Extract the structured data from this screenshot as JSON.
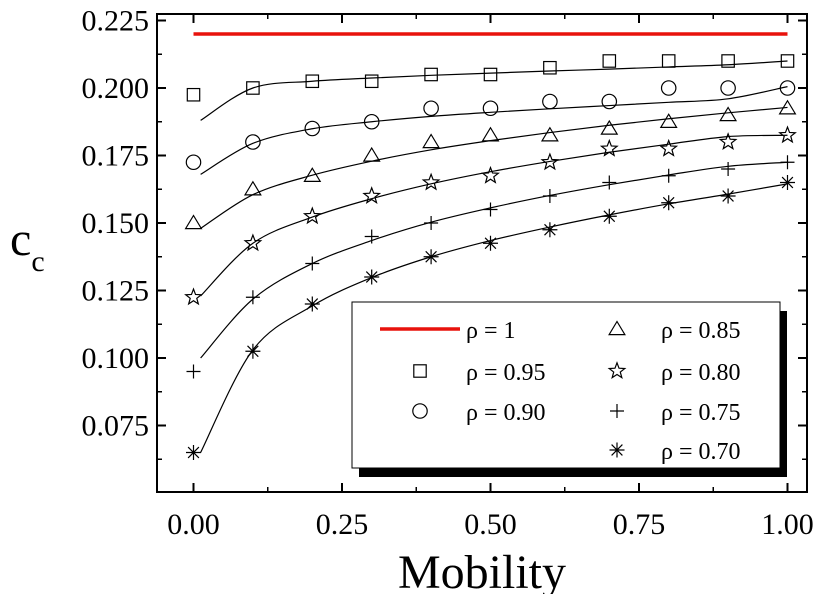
{
  "chart_data": {
    "type": "scatter",
    "title": "",
    "xlabel": "Mobility",
    "ylabel": "c",
    "ylabel_subscript": "c",
    "xlim": [
      -0.06,
      1.06
    ],
    "ylim": [
      0.05,
      0.228
    ],
    "xticks": [
      "0.00",
      "0.25",
      "0.50",
      "0.75",
      "1.00"
    ],
    "xtick_values": [
      0,
      0.25,
      0.5,
      0.75,
      1.0
    ],
    "yticks": [
      "0.075",
      "0.100",
      "0.125",
      "0.150",
      "0.175",
      "0.200",
      "0.225"
    ],
    "ytick_values": [
      0.075,
      0.1,
      0.125,
      0.15,
      0.175,
      0.2,
      0.225
    ],
    "legend_placement": "bottom-right",
    "x": [
      0,
      0.1,
      0.2,
      0.3,
      0.4,
      0.5,
      0.6,
      0.7,
      0.8,
      0.9,
      1.0
    ],
    "series": [
      {
        "name": "ρ = 1",
        "marker": "line",
        "color": "#e8120c",
        "values": [
          0.22,
          0.22
        ]
      },
      {
        "name": "ρ = 0.95",
        "marker": "square",
        "values": [
          0.1975,
          0.2,
          0.2025,
          0.2025,
          0.205,
          0.205,
          0.2075,
          0.21,
          0.21,
          0.21,
          0.21
        ],
        "fit": [
          0.188,
          0.2,
          0.2025,
          0.2037,
          0.2047,
          0.2055,
          0.2063,
          0.207,
          0.2078,
          0.2086,
          0.21
        ]
      },
      {
        "name": "ρ = 0.85",
        "marker": "triangle",
        "values": [
          0.15,
          0.1625,
          0.1675,
          0.175,
          0.18,
          0.1825,
          0.1825,
          0.185,
          0.1875,
          0.19,
          0.1925
        ],
        "fit": [
          0.148,
          0.1605,
          0.1677,
          0.1729,
          0.1771,
          0.1805,
          0.1835,
          0.1862,
          0.1886,
          0.1908,
          0.1928
        ]
      },
      {
        "name": "ρ = 0.90",
        "marker": "circle",
        "values": [
          0.1725,
          0.18,
          0.185,
          0.1875,
          0.1925,
          0.1925,
          0.195,
          0.195,
          0.2,
          0.2,
          0.2
        ],
        "fit": [
          0.168,
          0.1795,
          0.1849,
          0.1875,
          0.1895,
          0.191,
          0.1923,
          0.1935,
          0.1947,
          0.196,
          0.2005
        ]
      },
      {
        "name": "ρ = 0.80",
        "marker": "star",
        "values": [
          0.1225,
          0.1425,
          0.1525,
          0.16,
          0.165,
          0.1675,
          0.1725,
          0.1775,
          0.1775,
          0.18,
          0.1825
        ],
        "fit": [
          0.123,
          0.1425,
          0.1522,
          0.159,
          0.1645,
          0.169,
          0.1728,
          0.1762,
          0.1792,
          0.182,
          0.1825
        ]
      },
      {
        "name": "ρ = 0.75",
        "marker": "plus",
        "values": [
          0.095,
          0.1225,
          0.135,
          0.145,
          0.15,
          0.155,
          0.16,
          0.165,
          0.1675,
          0.17,
          0.1725
        ],
        "fit": [
          0.1,
          0.1218,
          0.135,
          0.1435,
          0.1503,
          0.1556,
          0.1602,
          0.1642,
          0.1678,
          0.171,
          0.1725
        ]
      },
      {
        "name": "ρ = 0.70",
        "marker": "asterisk",
        "values": [
          0.065,
          0.1025,
          0.12,
          0.13,
          0.1375,
          0.1425,
          0.1475,
          0.1525,
          0.1575,
          0.16,
          0.165
        ],
        "fit": [
          0.065,
          0.103,
          0.1193,
          0.1298,
          0.1375,
          0.1435,
          0.1485,
          0.153,
          0.1571,
          0.1607,
          0.1645
        ]
      }
    ]
  }
}
